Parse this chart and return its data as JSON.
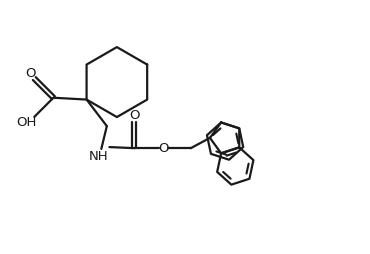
{
  "background_color": "#ffffff",
  "line_color": "#1a1a1a",
  "line_width": 1.6,
  "font_size": 9.5,
  "figsize": [
    3.7,
    2.54
  ],
  "dpi": 100,
  "xlim": [
    0,
    10
  ],
  "ylim": [
    0,
    6.86
  ]
}
